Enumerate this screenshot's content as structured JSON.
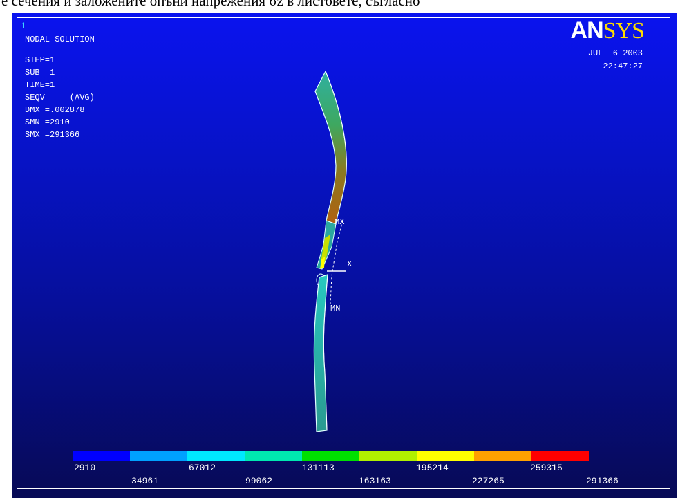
{
  "caption": "е сечения и заложените опъни напрежения σz в листовете, съгласно",
  "window_number": "1",
  "title": "NODAL SOLUTION",
  "info": [
    "STEP=1",
    "SUB =1",
    "TIME=1",
    "SEQV     (AVG)",
    "DMX =.002878",
    "SMN =2910",
    "SMX =291366"
  ],
  "logo": {
    "an": "AN",
    "sys": "SYS"
  },
  "date": "JUL  6 2003",
  "time": "22:47:27",
  "markers": {
    "mx": "MX",
    "mn": "MN",
    "axis_x": "X"
  },
  "legend": {
    "colors": [
      "#0000ff",
      "#00a0ff",
      "#00e8ff",
      "#00e8b0",
      "#00e000",
      "#b0f000",
      "#ffff00",
      "#ffa000",
      "#ff0000"
    ],
    "labels_top": [
      "2910",
      "67012",
      "131113",
      "195214",
      "259315"
    ],
    "labels_bottom": [
      "34961",
      "99062",
      "163163",
      "227265",
      "291366"
    ]
  }
}
